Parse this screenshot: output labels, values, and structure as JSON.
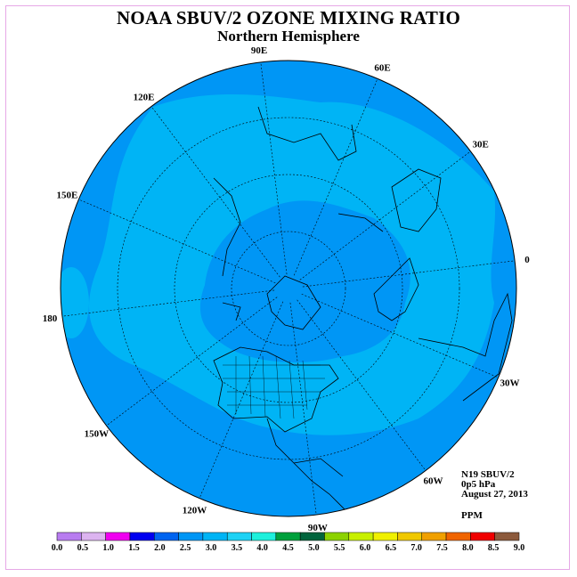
{
  "title": "NOAA SBUV/2 OZONE MIXING RATIO",
  "subtitle": "Northern Hemisphere",
  "longitude_labels": [
    {
      "text": "90E",
      "lon": 90
    },
    {
      "text": "60E",
      "lon": 60
    },
    {
      "text": "30E",
      "lon": 30
    },
    {
      "text": "0",
      "lon": 0
    },
    {
      "text": "30W",
      "lon": -30
    },
    {
      "text": "60W",
      "lon": -60
    },
    {
      "text": "90W",
      "lon": -90
    },
    {
      "text": "120W",
      "lon": -120
    },
    {
      "text": "150W",
      "lon": -150
    },
    {
      "text": "180",
      "lon": 180
    },
    {
      "text": "150E",
      "lon": 150
    },
    {
      "text": "120E",
      "lon": 120
    }
  ],
  "info": {
    "satellite": "N19 SBUV/2",
    "level": "0p5 hPa",
    "date": "August 27, 2013",
    "units": "PPM"
  },
  "colorbar": {
    "labels": [
      "0.0",
      "0.5",
      "1.0",
      "1.5",
      "2.0",
      "2.5",
      "3.0",
      "3.5",
      "4.0",
      "4.5",
      "5.0",
      "5.5",
      "6.0",
      "6.5",
      "7.0",
      "7.5",
      "8.0",
      "8.5",
      "9.0"
    ],
    "colors": [
      "#b87cf0",
      "#dcb4f0",
      "#f000f0",
      "#0000f0",
      "#0064f0",
      "#0096f5",
      "#00b4f5",
      "#1ed2f5",
      "#1ef0dc",
      "#00a03c",
      "#00643c",
      "#8cd200",
      "#c8f000",
      "#f0f000",
      "#f0c800",
      "#f0a000",
      "#f06400",
      "#f00000",
      "#8c5a3c"
    ]
  },
  "map": {
    "background_color": "#0096f5",
    "inner_color": "#00b4f5",
    "pole_color": "#0064f0"
  }
}
